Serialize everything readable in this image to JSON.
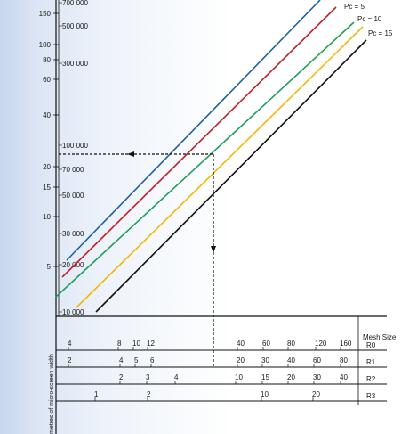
{
  "chart_data": {
    "type": "line",
    "left_axis": {
      "ticks": [
        "150",
        "100",
        "80",
        "60",
        "40",
        "20",
        "15",
        "10",
        "5"
      ]
    },
    "count_axis": {
      "ticks": [
        "700 000",
        "500 000",
        "300 000",
        "100 000",
        "70 000",
        "50 000",
        "30 000",
        "20 000",
        "10 000"
      ]
    },
    "series": [
      {
        "name": "",
        "color": "#1f5f9e",
        "x": [
          75,
          360
        ],
        "y": [
          292,
          0
        ]
      },
      {
        "name": "Pc = 5",
        "color": "#c0202a",
        "x": [
          70,
          378
        ],
        "y": [
          311,
          8
        ]
      },
      {
        "name": "Pc = 10",
        "color": "#1f9e5a",
        "x": [
          63,
          398
        ],
        "y": [
          333,
          25
        ]
      },
      {
        "name": "Pc = 15",
        "color": "#f2b705",
        "x": [
          86,
          408
        ],
        "y": [
          345,
          30
        ]
      },
      {
        "name": "",
        "color": "#111111",
        "x": [
          108,
          412
        ],
        "y": [
          350,
          45
        ]
      }
    ],
    "guide_lines": {
      "horizontal": {
        "y": 173,
        "x_from": 66,
        "x_to": 240
      },
      "vertical": {
        "x": 240,
        "y_from": 173,
        "y_to": 412
      }
    },
    "mesh_header": "Mesh Size",
    "mesh_rows": [
      {
        "label": "R0",
        "ticks": [
          "4",
          "8",
          "10",
          "12",
          "40",
          "60",
          "80",
          "120",
          "160"
        ]
      },
      {
        "label": "R1",
        "ticks": [
          "2",
          "4",
          "5",
          "6",
          "20",
          "30",
          "40",
          "60",
          "80"
        ]
      },
      {
        "label": "R2",
        "ticks": [
          "2",
          "3",
          "4",
          "10",
          "15",
          "20",
          "30",
          "40"
        ]
      },
      {
        "label": "R3",
        "ticks": [
          "1",
          "2",
          "10",
          "20"
        ]
      }
    ],
    "y_label_fragment": "metres of micro-screen width"
  }
}
